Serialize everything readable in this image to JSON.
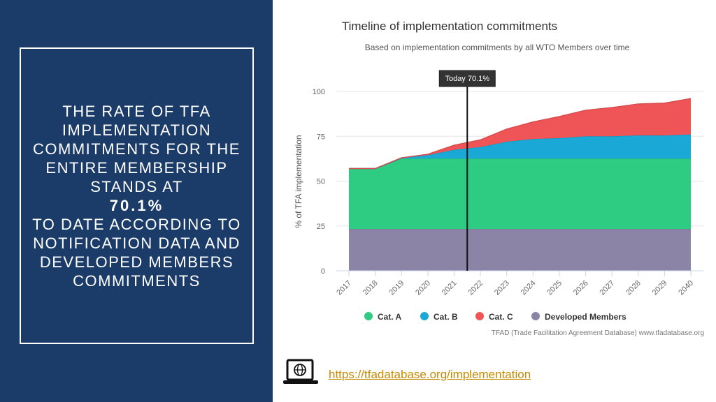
{
  "slide": {
    "statement_before": "THE RATE OF TFA IMPLEMENTATION COMMITMENTS FOR THE ENTIRE MEMBERSHIP STANDS AT",
    "rate": "70.1%",
    "statement_after": "TO DATE ACCORDING TO NOTIFICATION DATA AND DEVELOPED MEMBERS COMMITMENTS",
    "link": "https://tfadatabase.org/implementation"
  },
  "chart_data": {
    "type": "stacked-area",
    "title": "Timeline of implementation commitments",
    "subtitle": "Based on implementation commitments by all WTO Members over time",
    "y_label": "% of TFA implementation",
    "source": "TFAD (Trade Facilitation Agreement Database) www.tfadatabase.org",
    "categories": [
      "2017",
      "2018",
      "2019",
      "2020",
      "2021",
      "2022",
      "2023",
      "2024",
      "2025",
      "2026",
      "2027",
      "2028",
      "2029",
      "2040"
    ],
    "series": [
      {
        "name": "Cat. A",
        "color": "#2ecc82",
        "values": [
          33.7,
          33.7,
          39.2,
          39.2,
          39.2,
          39.2,
          39.2,
          39.2,
          39.2,
          39.2,
          39.2,
          39.2,
          39.2,
          39.2
        ]
      },
      {
        "name": "Cat. B",
        "color": "#1aa9d6",
        "values": [
          0,
          0,
          0.5,
          2,
          5,
          6.5,
          9.5,
          11,
          11.5,
          12.5,
          12.5,
          13,
          13,
          13.5
        ]
      },
      {
        "name": "Cat. C",
        "color": "#ef5556",
        "values": [
          0,
          0,
          0,
          0.5,
          2.5,
          4,
          7,
          9.5,
          12,
          14.5,
          16,
          17.5,
          18,
          20
        ]
      },
      {
        "name": "Developed Members",
        "color": "#8b84a6",
        "values": [
          23.3,
          23.3,
          23.3,
          23.3,
          23.3,
          23.3,
          23.3,
          23.3,
          23.3,
          23.3,
          23.3,
          23.3,
          23.3,
          23.3
        ]
      }
    ],
    "ylim": [
      0,
      100
    ],
    "yticks": [
      0,
      25,
      50,
      75,
      100
    ],
    "grid": true,
    "annotation": {
      "text": "Today 70.1%",
      "x": 2021.5
    }
  }
}
